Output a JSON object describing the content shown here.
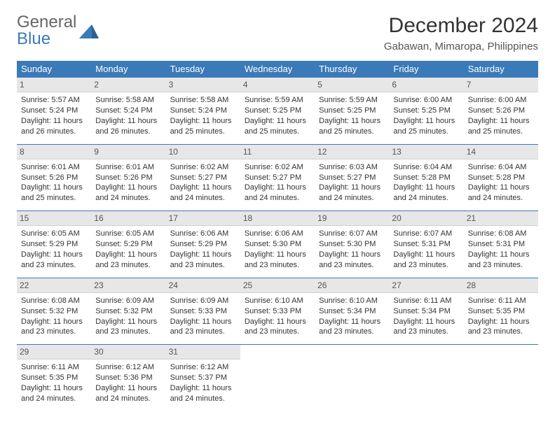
{
  "brand": {
    "top": "General",
    "bottom": "Blue"
  },
  "title": "December 2024",
  "location": "Gabawan, Mimaropa, Philippines",
  "colors": {
    "header_bg": "#3b7ab8",
    "header_text": "#ffffff",
    "daynum_bg": "#e7e7e7",
    "row_border": "#3b7ab8",
    "page_bg": "#ffffff",
    "text": "#333333"
  },
  "weekdays": [
    "Sunday",
    "Monday",
    "Tuesday",
    "Wednesday",
    "Thursday",
    "Friday",
    "Saturday"
  ],
  "weeks": [
    [
      {
        "num": "1",
        "sunrise": "Sunrise: 5:57 AM",
        "sunset": "Sunset: 5:24 PM",
        "daylight": "Daylight: 11 hours and 26 minutes."
      },
      {
        "num": "2",
        "sunrise": "Sunrise: 5:58 AM",
        "sunset": "Sunset: 5:24 PM",
        "daylight": "Daylight: 11 hours and 26 minutes."
      },
      {
        "num": "3",
        "sunrise": "Sunrise: 5:58 AM",
        "sunset": "Sunset: 5:24 PM",
        "daylight": "Daylight: 11 hours and 25 minutes."
      },
      {
        "num": "4",
        "sunrise": "Sunrise: 5:59 AM",
        "sunset": "Sunset: 5:25 PM",
        "daylight": "Daylight: 11 hours and 25 minutes."
      },
      {
        "num": "5",
        "sunrise": "Sunrise: 5:59 AM",
        "sunset": "Sunset: 5:25 PM",
        "daylight": "Daylight: 11 hours and 25 minutes."
      },
      {
        "num": "6",
        "sunrise": "Sunrise: 6:00 AM",
        "sunset": "Sunset: 5:25 PM",
        "daylight": "Daylight: 11 hours and 25 minutes."
      },
      {
        "num": "7",
        "sunrise": "Sunrise: 6:00 AM",
        "sunset": "Sunset: 5:26 PM",
        "daylight": "Daylight: 11 hours and 25 minutes."
      }
    ],
    [
      {
        "num": "8",
        "sunrise": "Sunrise: 6:01 AM",
        "sunset": "Sunset: 5:26 PM",
        "daylight": "Daylight: 11 hours and 25 minutes."
      },
      {
        "num": "9",
        "sunrise": "Sunrise: 6:01 AM",
        "sunset": "Sunset: 5:26 PM",
        "daylight": "Daylight: 11 hours and 24 minutes."
      },
      {
        "num": "10",
        "sunrise": "Sunrise: 6:02 AM",
        "sunset": "Sunset: 5:27 PM",
        "daylight": "Daylight: 11 hours and 24 minutes."
      },
      {
        "num": "11",
        "sunrise": "Sunrise: 6:02 AM",
        "sunset": "Sunset: 5:27 PM",
        "daylight": "Daylight: 11 hours and 24 minutes."
      },
      {
        "num": "12",
        "sunrise": "Sunrise: 6:03 AM",
        "sunset": "Sunset: 5:27 PM",
        "daylight": "Daylight: 11 hours and 24 minutes."
      },
      {
        "num": "13",
        "sunrise": "Sunrise: 6:04 AM",
        "sunset": "Sunset: 5:28 PM",
        "daylight": "Daylight: 11 hours and 24 minutes."
      },
      {
        "num": "14",
        "sunrise": "Sunrise: 6:04 AM",
        "sunset": "Sunset: 5:28 PM",
        "daylight": "Daylight: 11 hours and 24 minutes."
      }
    ],
    [
      {
        "num": "15",
        "sunrise": "Sunrise: 6:05 AM",
        "sunset": "Sunset: 5:29 PM",
        "daylight": "Daylight: 11 hours and 23 minutes."
      },
      {
        "num": "16",
        "sunrise": "Sunrise: 6:05 AM",
        "sunset": "Sunset: 5:29 PM",
        "daylight": "Daylight: 11 hours and 23 minutes."
      },
      {
        "num": "17",
        "sunrise": "Sunrise: 6:06 AM",
        "sunset": "Sunset: 5:29 PM",
        "daylight": "Daylight: 11 hours and 23 minutes."
      },
      {
        "num": "18",
        "sunrise": "Sunrise: 6:06 AM",
        "sunset": "Sunset: 5:30 PM",
        "daylight": "Daylight: 11 hours and 23 minutes."
      },
      {
        "num": "19",
        "sunrise": "Sunrise: 6:07 AM",
        "sunset": "Sunset: 5:30 PM",
        "daylight": "Daylight: 11 hours and 23 minutes."
      },
      {
        "num": "20",
        "sunrise": "Sunrise: 6:07 AM",
        "sunset": "Sunset: 5:31 PM",
        "daylight": "Daylight: 11 hours and 23 minutes."
      },
      {
        "num": "21",
        "sunrise": "Sunrise: 6:08 AM",
        "sunset": "Sunset: 5:31 PM",
        "daylight": "Daylight: 11 hours and 23 minutes."
      }
    ],
    [
      {
        "num": "22",
        "sunrise": "Sunrise: 6:08 AM",
        "sunset": "Sunset: 5:32 PM",
        "daylight": "Daylight: 11 hours and 23 minutes."
      },
      {
        "num": "23",
        "sunrise": "Sunrise: 6:09 AM",
        "sunset": "Sunset: 5:32 PM",
        "daylight": "Daylight: 11 hours and 23 minutes."
      },
      {
        "num": "24",
        "sunrise": "Sunrise: 6:09 AM",
        "sunset": "Sunset: 5:33 PM",
        "daylight": "Daylight: 11 hours and 23 minutes."
      },
      {
        "num": "25",
        "sunrise": "Sunrise: 6:10 AM",
        "sunset": "Sunset: 5:33 PM",
        "daylight": "Daylight: 11 hours and 23 minutes."
      },
      {
        "num": "26",
        "sunrise": "Sunrise: 6:10 AM",
        "sunset": "Sunset: 5:34 PM",
        "daylight": "Daylight: 11 hours and 23 minutes."
      },
      {
        "num": "27",
        "sunrise": "Sunrise: 6:11 AM",
        "sunset": "Sunset: 5:34 PM",
        "daylight": "Daylight: 11 hours and 23 minutes."
      },
      {
        "num": "28",
        "sunrise": "Sunrise: 6:11 AM",
        "sunset": "Sunset: 5:35 PM",
        "daylight": "Daylight: 11 hours and 23 minutes."
      }
    ],
    [
      {
        "num": "29",
        "sunrise": "Sunrise: 6:11 AM",
        "sunset": "Sunset: 5:35 PM",
        "daylight": "Daylight: 11 hours and 24 minutes."
      },
      {
        "num": "30",
        "sunrise": "Sunrise: 6:12 AM",
        "sunset": "Sunset: 5:36 PM",
        "daylight": "Daylight: 11 hours and 24 minutes."
      },
      {
        "num": "31",
        "sunrise": "Sunrise: 6:12 AM",
        "sunset": "Sunset: 5:37 PM",
        "daylight": "Daylight: 11 hours and 24 minutes."
      },
      null,
      null,
      null,
      null
    ]
  ]
}
